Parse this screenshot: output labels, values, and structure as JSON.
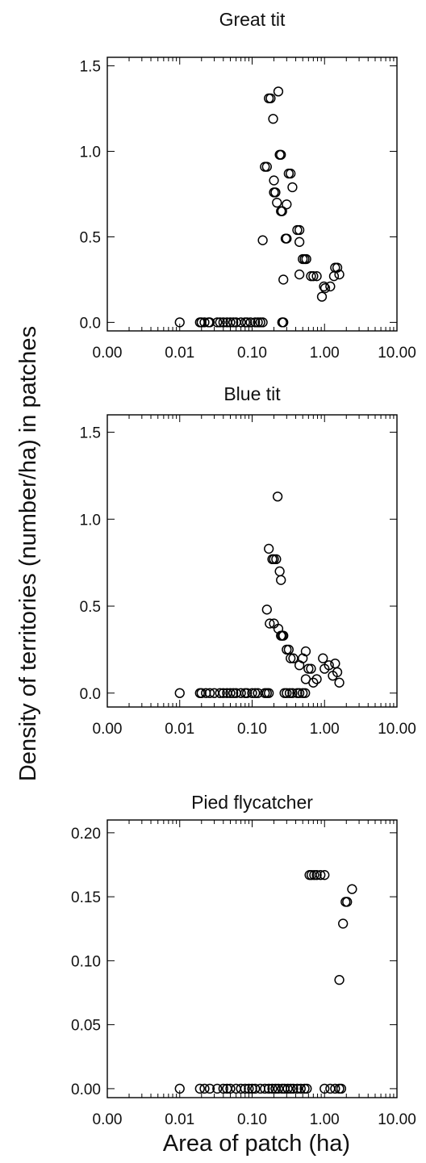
{
  "figure": {
    "ylabel": "Density of territories (number/ha) in patches",
    "xlabel": "Area of patch (ha)"
  },
  "chart_data": [
    {
      "type": "scatter",
      "title": "Great tit",
      "x_scale": "log",
      "xlim": [
        0.001,
        10
      ],
      "ylim": [
        -0.05,
        1.55
      ],
      "x_ticks": [
        0.001,
        0.01,
        0.1,
        1,
        10
      ],
      "x_tick_labels": [
        "0.00",
        "0.01",
        "0.10",
        "1.00",
        "10.00"
      ],
      "y_ticks": [
        0,
        0.5,
        1.0,
        1.5
      ],
      "y_tick_labels": [
        "0.0",
        "0.5",
        "1.0",
        "1.5"
      ],
      "grid": false,
      "points": [
        [
          0.01,
          0
        ],
        [
          0.019,
          0
        ],
        [
          0.02,
          0
        ],
        [
          0.022,
          0
        ],
        [
          0.025,
          0
        ],
        [
          0.026,
          0
        ],
        [
          0.033,
          0
        ],
        [
          0.036,
          0
        ],
        [
          0.04,
          0
        ],
        [
          0.045,
          0
        ],
        [
          0.05,
          0
        ],
        [
          0.055,
          0
        ],
        [
          0.06,
          0
        ],
        [
          0.07,
          0
        ],
        [
          0.08,
          0
        ],
        [
          0.085,
          0
        ],
        [
          0.095,
          0
        ],
        [
          0.11,
          0
        ],
        [
          0.12,
          0
        ],
        [
          0.13,
          0
        ],
        [
          0.14,
          0
        ],
        [
          0.26,
          0
        ],
        [
          0.27,
          0
        ],
        [
          0.14,
          0.48
        ],
        [
          0.15,
          0.91
        ],
        [
          0.16,
          0.91
        ],
        [
          0.17,
          1.31
        ],
        [
          0.18,
          1.31
        ],
        [
          0.195,
          1.19
        ],
        [
          0.2,
          0.83
        ],
        [
          0.2,
          0.76
        ],
        [
          0.21,
          0.76
        ],
        [
          0.22,
          0.7
        ],
        [
          0.23,
          1.35
        ],
        [
          0.24,
          0.98
        ],
        [
          0.25,
          0.98
        ],
        [
          0.25,
          0.65
        ],
        [
          0.26,
          0.65
        ],
        [
          0.27,
          0.25
        ],
        [
          0.29,
          0.49
        ],
        [
          0.3,
          0.49
        ],
        [
          0.3,
          0.69
        ],
        [
          0.32,
          0.87
        ],
        [
          0.34,
          0.87
        ],
        [
          0.36,
          0.79
        ],
        [
          0.42,
          0.54
        ],
        [
          0.45,
          0.54
        ],
        [
          0.45,
          0.28
        ],
        [
          0.45,
          0.47
        ],
        [
          0.5,
          0.37
        ],
        [
          0.53,
          0.37
        ],
        [
          0.56,
          0.37
        ],
        [
          0.65,
          0.27
        ],
        [
          0.7,
          0.27
        ],
        [
          0.78,
          0.27
        ],
        [
          0.92,
          0.15
        ],
        [
          0.98,
          0.21
        ],
        [
          1.02,
          0.2
        ],
        [
          1.2,
          0.21
        ],
        [
          1.35,
          0.27
        ],
        [
          1.4,
          0.32
        ],
        [
          1.5,
          0.32
        ],
        [
          1.6,
          0.28
        ]
      ]
    },
    {
      "type": "scatter",
      "title": "Blue tit",
      "x_scale": "log",
      "xlim": [
        0.001,
        10
      ],
      "ylim": [
        -0.08,
        1.6
      ],
      "x_ticks": [
        0.001,
        0.01,
        0.1,
        1,
        10
      ],
      "x_tick_labels": [
        "0.00",
        "0.01",
        "0.10",
        "1.00",
        "10.00"
      ],
      "y_ticks": [
        0,
        0.5,
        1.0,
        1.5
      ],
      "y_tick_labels": [
        "0.0",
        "0.5",
        "1.0",
        "1.5"
      ],
      "grid": false,
      "points": [
        [
          0.01,
          0
        ],
        [
          0.019,
          0
        ],
        [
          0.02,
          0
        ],
        [
          0.023,
          0
        ],
        [
          0.026,
          0
        ],
        [
          0.03,
          0
        ],
        [
          0.036,
          0
        ],
        [
          0.04,
          0
        ],
        [
          0.045,
          0
        ],
        [
          0.05,
          0
        ],
        [
          0.055,
          0
        ],
        [
          0.06,
          0
        ],
        [
          0.07,
          0
        ],
        [
          0.08,
          0
        ],
        [
          0.085,
          0
        ],
        [
          0.1,
          0
        ],
        [
          0.11,
          0
        ],
        [
          0.12,
          0
        ],
        [
          0.15,
          0
        ],
        [
          0.16,
          0
        ],
        [
          0.17,
          0
        ],
        [
          0.28,
          0
        ],
        [
          0.3,
          0
        ],
        [
          0.33,
          0
        ],
        [
          0.36,
          0
        ],
        [
          0.42,
          0
        ],
        [
          0.45,
          0
        ],
        [
          0.5,
          0
        ],
        [
          0.54,
          0
        ],
        [
          0.16,
          0.48
        ],
        [
          0.17,
          0.83
        ],
        [
          0.175,
          0.4
        ],
        [
          0.19,
          0.77
        ],
        [
          0.2,
          0.77
        ],
        [
          0.2,
          0.4
        ],
        [
          0.215,
          0.77
        ],
        [
          0.225,
          1.13
        ],
        [
          0.23,
          0.37
        ],
        [
          0.24,
          0.7
        ],
        [
          0.25,
          0.65
        ],
        [
          0.25,
          0.33
        ],
        [
          0.26,
          0.33
        ],
        [
          0.27,
          0.33
        ],
        [
          0.3,
          0.25
        ],
        [
          0.32,
          0.25
        ],
        [
          0.34,
          0.2
        ],
        [
          0.37,
          0.2
        ],
        [
          0.45,
          0.16
        ],
        [
          0.5,
          0.2
        ],
        [
          0.55,
          0.24
        ],
        [
          0.55,
          0.08
        ],
        [
          0.6,
          0.14
        ],
        [
          0.65,
          0.14
        ],
        [
          0.7,
          0.06
        ],
        [
          0.78,
          0.08
        ],
        [
          0.95,
          0.2
        ],
        [
          1.0,
          0.14
        ],
        [
          1.15,
          0.16
        ],
        [
          1.3,
          0.1
        ],
        [
          1.4,
          0.17
        ],
        [
          1.5,
          0.12
        ],
        [
          1.6,
          0.06
        ]
      ]
    },
    {
      "type": "scatter",
      "title": "Pied flycatcher",
      "x_scale": "log",
      "xlim": [
        0.001,
        10
      ],
      "ylim": [
        -0.007,
        0.21
      ],
      "x_ticks": [
        0.001,
        0.01,
        0.1,
        1,
        10
      ],
      "x_tick_labels": [
        "0.00",
        "0.01",
        "0.10",
        "1.00",
        "10.00"
      ],
      "y_ticks": [
        0,
        0.05,
        0.1,
        0.15,
        0.2
      ],
      "y_tick_labels": [
        "0.00",
        "0.05",
        "0.10",
        "0.15",
        "0.20"
      ],
      "grid": false,
      "points": [
        [
          0.01,
          0
        ],
        [
          0.019,
          0
        ],
        [
          0.022,
          0
        ],
        [
          0.026,
          0
        ],
        [
          0.033,
          0
        ],
        [
          0.04,
          0
        ],
        [
          0.045,
          0
        ],
        [
          0.05,
          0
        ],
        [
          0.06,
          0
        ],
        [
          0.07,
          0
        ],
        [
          0.08,
          0
        ],
        [
          0.09,
          0
        ],
        [
          0.1,
          0
        ],
        [
          0.11,
          0
        ],
        [
          0.13,
          0
        ],
        [
          0.15,
          0
        ],
        [
          0.17,
          0
        ],
        [
          0.19,
          0
        ],
        [
          0.21,
          0
        ],
        [
          0.23,
          0
        ],
        [
          0.26,
          0
        ],
        [
          0.28,
          0
        ],
        [
          0.31,
          0
        ],
        [
          0.34,
          0
        ],
        [
          0.37,
          0
        ],
        [
          0.42,
          0
        ],
        [
          0.47,
          0
        ],
        [
          0.53,
          0
        ],
        [
          0.57,
          0
        ],
        [
          1.0,
          0
        ],
        [
          1.2,
          0
        ],
        [
          1.4,
          0
        ],
        [
          1.6,
          0
        ],
        [
          1.7,
          0
        ],
        [
          0.62,
          0.167
        ],
        [
          0.66,
          0.167
        ],
        [
          0.72,
          0.167
        ],
        [
          0.78,
          0.167
        ],
        [
          0.88,
          0.167
        ],
        [
          1.0,
          0.167
        ],
        [
          1.6,
          0.085
        ],
        [
          1.8,
          0.129
        ],
        [
          1.95,
          0.146
        ],
        [
          2.05,
          0.146
        ],
        [
          2.4,
          0.156
        ]
      ]
    }
  ]
}
